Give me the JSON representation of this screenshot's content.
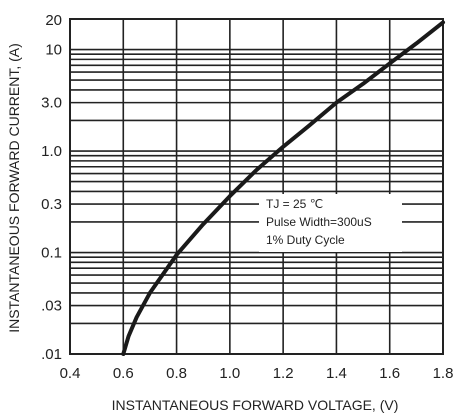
{
  "chart_data": {
    "type": "line",
    "title": "",
    "xlabel": "INSTANTANEOUS FORWARD VOLTAGE, (V)",
    "ylabel": "INSTANTANEOUS FORWARD CURRENT, (A)",
    "xscale": "linear",
    "yscale": "log",
    "xlim": [
      0.4,
      1.8
    ],
    "ylim": [
      0.01,
      20
    ],
    "grid": true,
    "legend": "none",
    "x_ticks": [
      {
        "value": 0.4,
        "label": "0.4"
      },
      {
        "value": 0.6,
        "label": "0.6"
      },
      {
        "value": 0.8,
        "label": "0.8"
      },
      {
        "value": 1.0,
        "label": "1.0"
      },
      {
        "value": 1.2,
        "label": "1.2"
      },
      {
        "value": 1.4,
        "label": "1.4"
      },
      {
        "value": 1.6,
        "label": "1.6"
      },
      {
        "value": 1.8,
        "label": "1.8"
      }
    ],
    "y_ticks": [
      {
        "value": 20,
        "label": "20"
      },
      {
        "value": 10,
        "label": "10"
      },
      {
        "value": 3,
        "label": "3.0"
      },
      {
        "value": 1,
        "label": "1.0"
      },
      {
        "value": 0.3,
        "label": "0.3"
      },
      {
        "value": 0.1,
        "label": "0.1"
      },
      {
        "value": 0.03,
        "label": ".03"
      },
      {
        "value": 0.01,
        "label": ".01"
      }
    ],
    "series": [
      {
        "color": "#1a1a1a",
        "x": [
          0.6,
          0.62,
          0.65,
          0.7,
          0.8,
          0.9,
          1.0,
          1.1,
          1.2,
          1.3,
          1.4,
          1.5,
          1.6,
          1.7,
          1.8
        ],
        "y": [
          0.01,
          0.015,
          0.023,
          0.04,
          0.095,
          0.19,
          0.36,
          0.65,
          1.1,
          1.8,
          3.0,
          4.6,
          7.3,
          11.5,
          18.5
        ]
      }
    ],
    "annotation": {
      "lines": [
        "TJ = 25 ℃",
        "Pulse Width=300uS",
        "1% Duty Cycle"
      ]
    }
  }
}
